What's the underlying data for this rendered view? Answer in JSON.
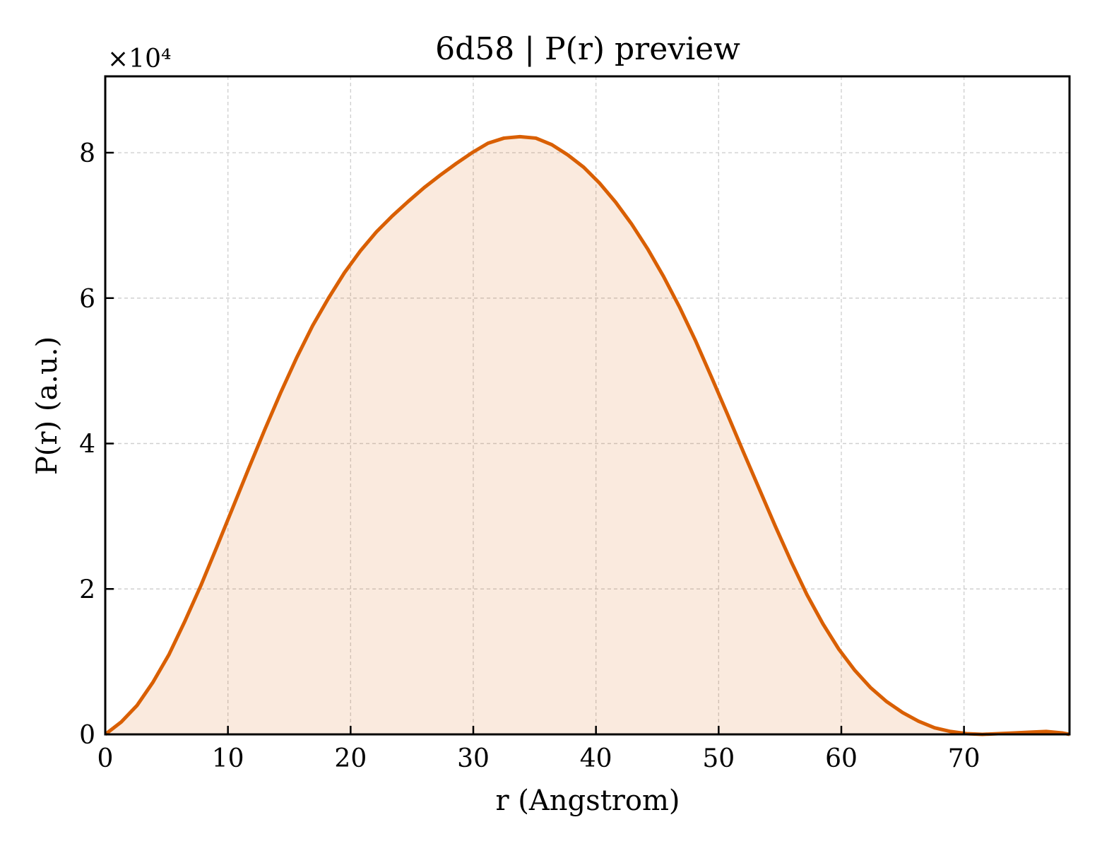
{
  "chart_data": {
    "type": "area",
    "title": "6d58 | P(r) preview",
    "xlabel": "r (Angstrom)",
    "ylabel": "P(r) (a.u.)",
    "y_multiplier": "×10⁴",
    "xlim": [
      0,
      78.6
    ],
    "ylim": [
      0,
      9.05
    ],
    "xticks": [
      0,
      10,
      20,
      30,
      40,
      50,
      60,
      70
    ],
    "yticks": [
      0,
      2,
      4,
      6,
      8
    ],
    "grid": true,
    "legend": "none",
    "colors": {
      "line": "#d95f02",
      "fill": "#d95f02",
      "grid": "#d0d0d0",
      "axes": "#000000"
    },
    "series": [
      {
        "x": [
          0,
          1.3,
          2.6,
          3.9,
          5.2,
          6.5,
          7.8,
          9.1,
          10.4,
          11.7,
          13.0,
          14.3,
          15.6,
          16.9,
          18.2,
          19.5,
          20.8,
          22.1,
          23.4,
          24.7,
          26.0,
          27.3,
          28.6,
          29.9,
          31.2,
          32.5,
          33.8,
          35.1,
          36.4,
          37.7,
          39.0,
          40.3,
          41.6,
          42.9,
          44.2,
          45.5,
          46.8,
          48.1,
          49.4,
          50.7,
          52.0,
          53.3,
          54.6,
          55.9,
          57.2,
          58.5,
          59.8,
          61.1,
          62.4,
          63.7,
          65.0,
          66.3,
          67.6,
          68.9,
          70.2,
          71.5,
          72.8,
          74.1,
          75.4,
          76.7,
          78.0,
          78.6
        ],
        "y": [
          0,
          0.17,
          0.4,
          0.72,
          1.1,
          1.56,
          2.05,
          2.58,
          3.12,
          3.66,
          4.19,
          4.7,
          5.18,
          5.62,
          6.0,
          6.35,
          6.65,
          6.91,
          7.13,
          7.33,
          7.52,
          7.69,
          7.85,
          8.0,
          8.13,
          8.2,
          8.22,
          8.2,
          8.11,
          7.97,
          7.8,
          7.58,
          7.32,
          7.02,
          6.68,
          6.3,
          5.88,
          5.42,
          4.92,
          4.41,
          3.89,
          3.38,
          2.87,
          2.38,
          1.92,
          1.52,
          1.17,
          0.88,
          0.64,
          0.45,
          0.3,
          0.18,
          0.09,
          0.04,
          0.01,
          0.0,
          0.01,
          0.02,
          0.03,
          0.04,
          0.02,
          0.0
        ]
      }
    ]
  }
}
